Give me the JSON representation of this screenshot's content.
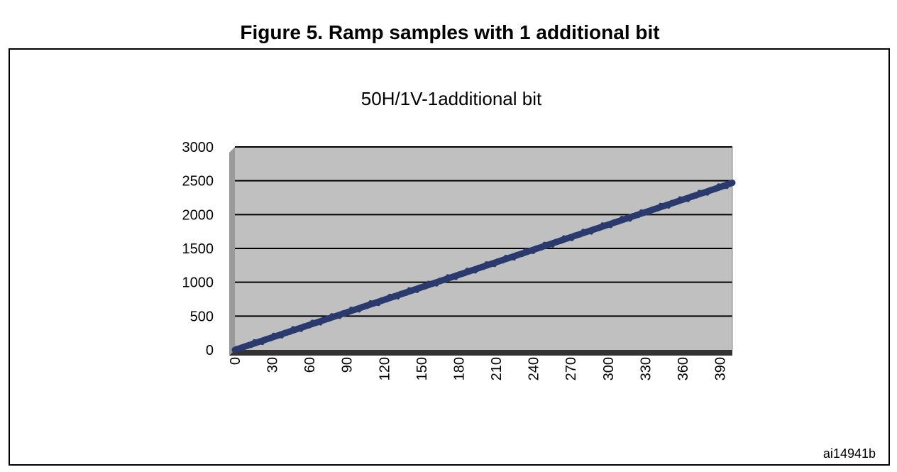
{
  "figure": {
    "caption": "Figure 5. Ramp samples with 1 additional bit",
    "code": "ai14941b"
  },
  "colors": {
    "plot_background": "#c0c0c0",
    "gridline": "#000000",
    "series": "#2b3a6e",
    "floor": "#333333"
  },
  "chart_data": {
    "type": "line",
    "title": "50H/1V-1additional bit",
    "xlabel": "",
    "ylabel": "",
    "xlim": [
      0,
      400
    ],
    "ylim": [
      0,
      3000
    ],
    "x_ticks": [
      0,
      30,
      60,
      90,
      120,
      150,
      180,
      210,
      240,
      270,
      300,
      330,
      360,
      390
    ],
    "y_ticks": [
      0,
      500,
      1000,
      1500,
      2000,
      2500,
      3000
    ],
    "grid": true,
    "legend": "none",
    "series": [
      {
        "x": [
          0,
          30,
          60,
          90,
          120,
          150,
          180,
          210,
          240,
          270,
          300,
          330,
          360,
          390,
          400
        ],
        "values": [
          0,
          185,
          370,
          555,
          740,
          925,
          1110,
          1295,
          1480,
          1665,
          1850,
          2035,
          2220,
          2405,
          2470
        ]
      }
    ]
  }
}
